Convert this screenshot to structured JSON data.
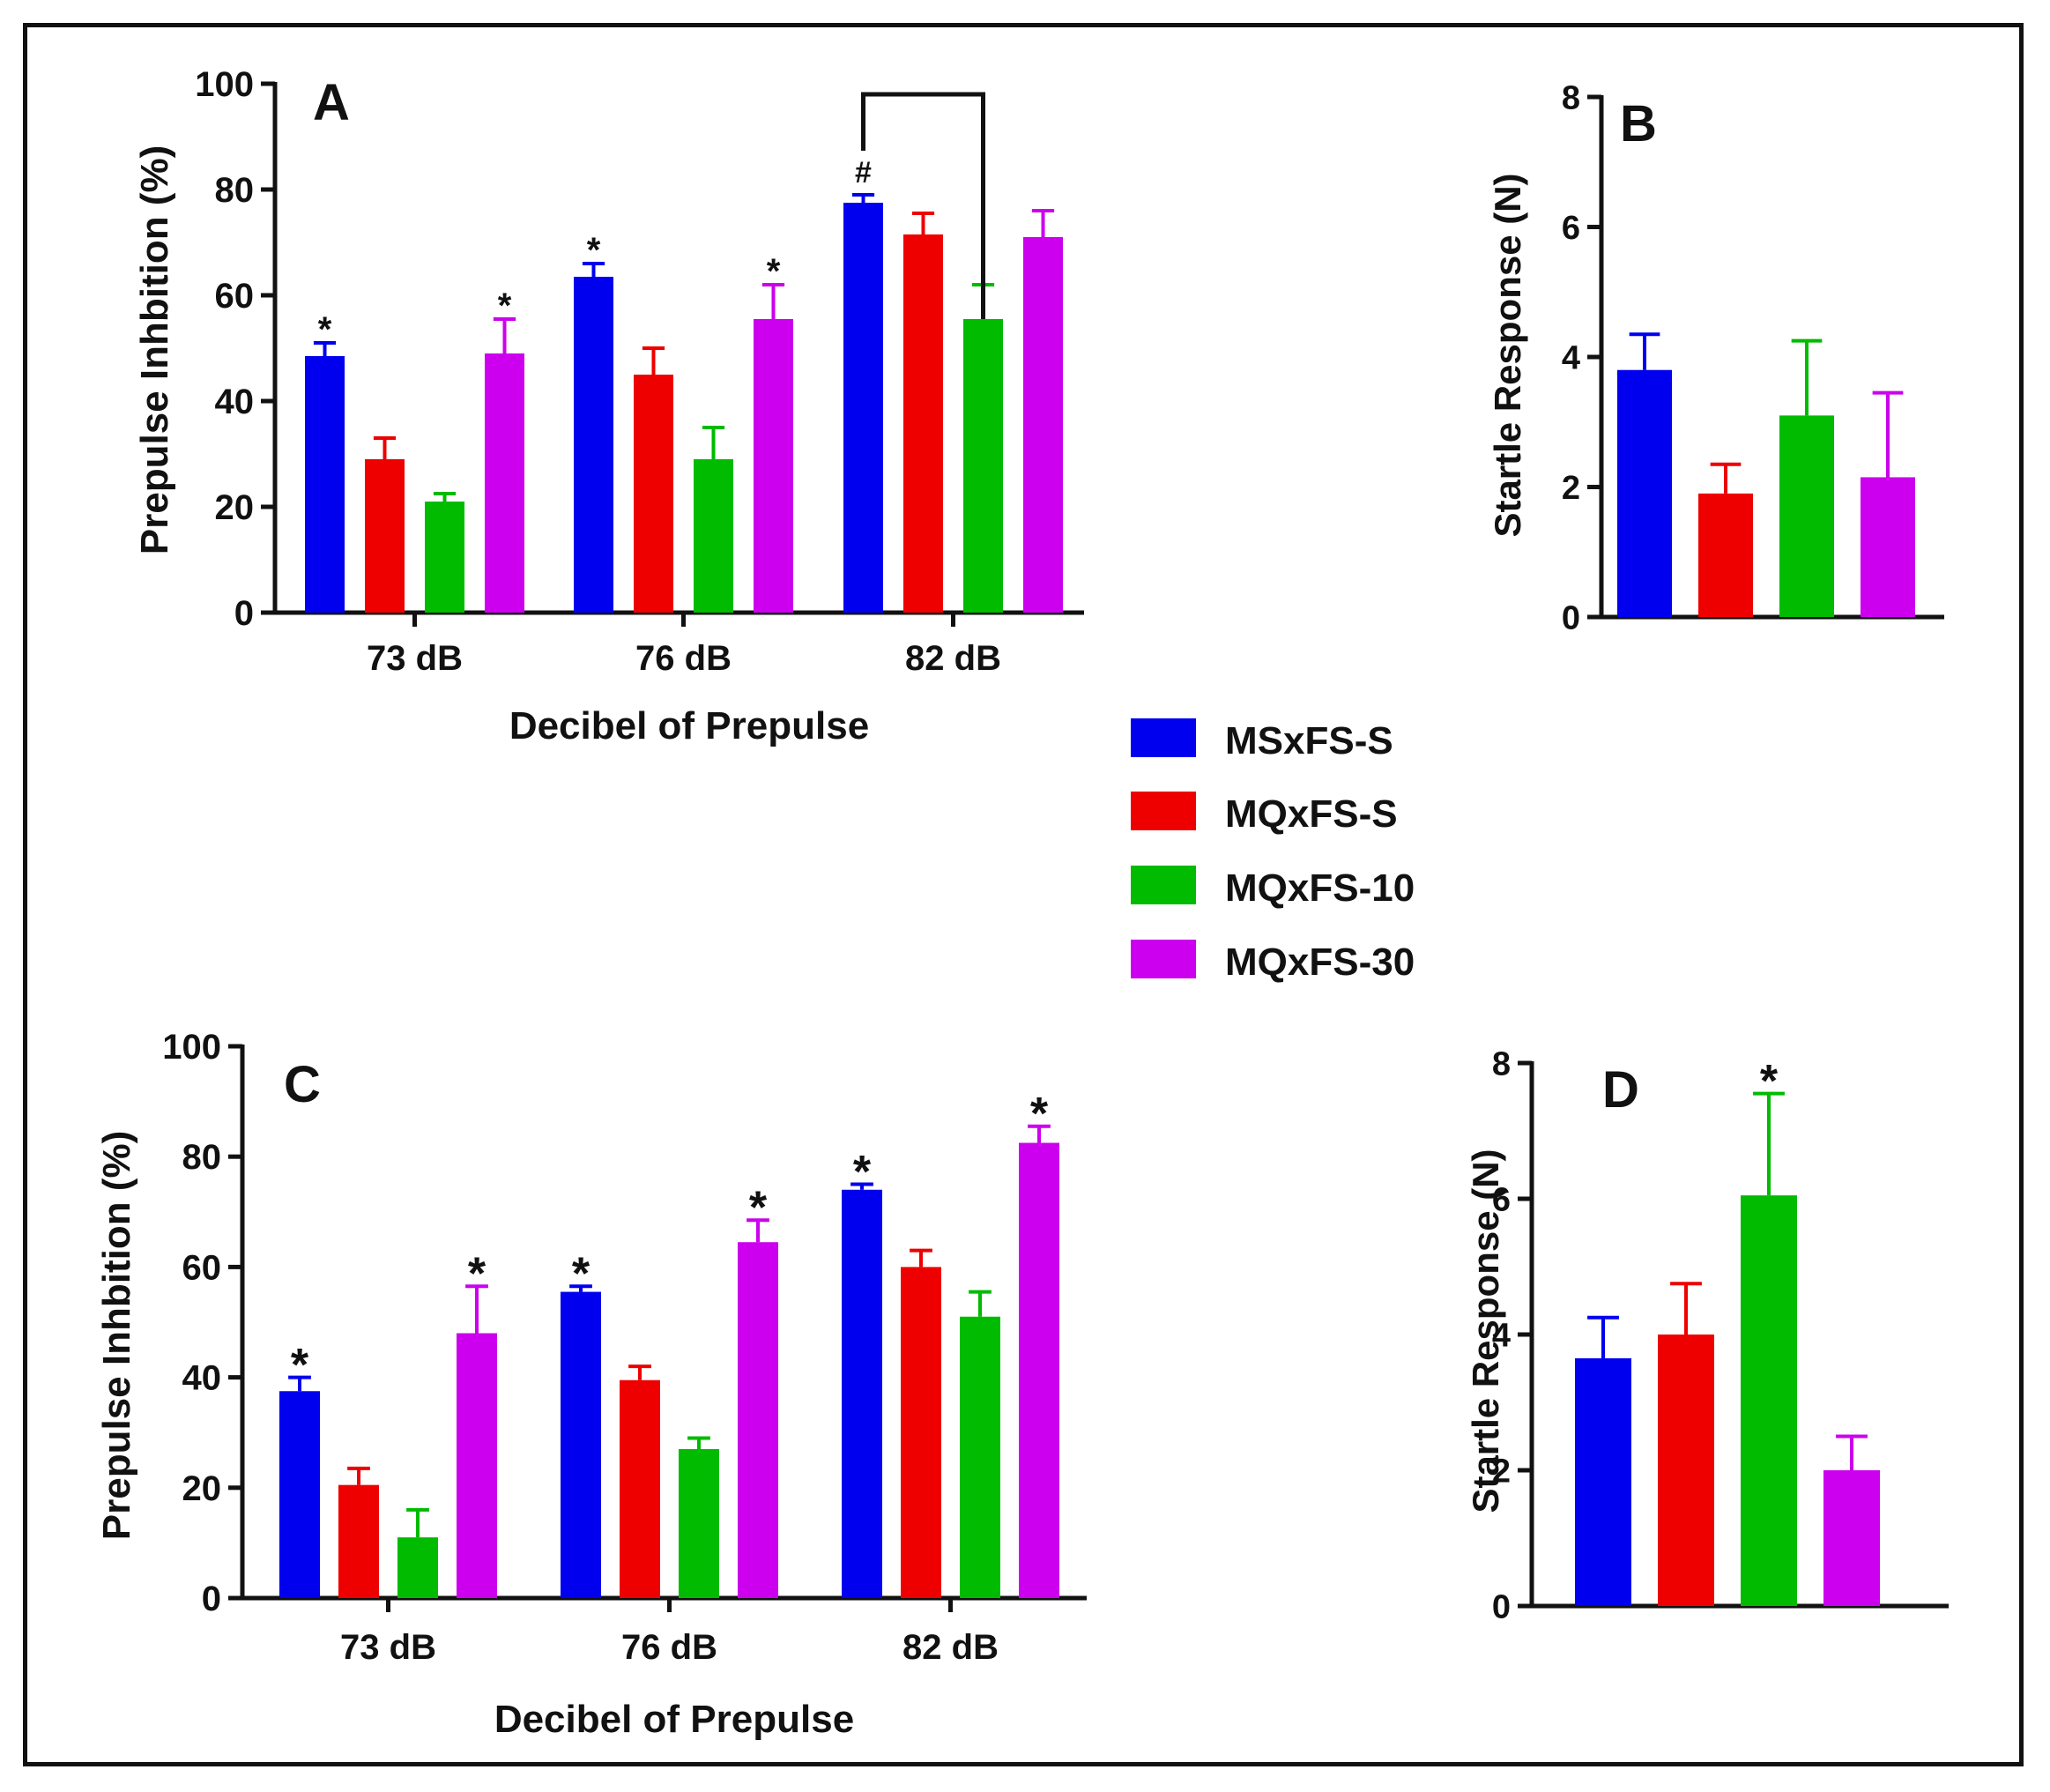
{
  "colors": [
    "#0000ee",
    "#ee0000",
    "#00bb00",
    "#cc00ee"
  ],
  "legend": {
    "entries": [
      "MSxFS-S",
      "MQxFS-S",
      "MQxFS-10",
      "MQxFS-30"
    ]
  },
  "chart_data": [
    {
      "panel": "A",
      "type": "bar",
      "ylabel": "Prepulse Inhbition (%)",
      "xlabel": "Decibel of Prepulse",
      "ylim": [
        0,
        100
      ],
      "yticks": [
        "0",
        "20",
        "40",
        "60",
        "80",
        "100"
      ],
      "categories": [
        "73 dB",
        "76 dB",
        "82 dB"
      ],
      "series": [
        {
          "name": "MSxFS-S",
          "values": [
            48.5,
            63.5,
            77.5
          ],
          "errors": [
            2.5,
            2.5,
            1.5
          ],
          "marks": [
            "*",
            "*",
            "#"
          ]
        },
        {
          "name": "MQxFS-S",
          "values": [
            29,
            45,
            71.5
          ],
          "errors": [
            4,
            5,
            4
          ],
          "marks": [
            "",
            "",
            ""
          ]
        },
        {
          "name": "MQxFS-10",
          "values": [
            21,
            29,
            55.5
          ],
          "errors": [
            1.5,
            6,
            6.5
          ],
          "marks": [
            "",
            "",
            ""
          ]
        },
        {
          "name": "MQxFS-30",
          "values": [
            49,
            55.5,
            71
          ],
          "errors": [
            6.5,
            6.5,
            5
          ],
          "marks": [
            "*",
            "*",
            ""
          ]
        }
      ],
      "bracket": {
        "category": "82 dB",
        "from_series": 0,
        "to_series": 2,
        "top_value": 98
      }
    },
    {
      "panel": "B",
      "type": "bar",
      "ylabel": "Startle Response (N)",
      "ylim": [
        0,
        8
      ],
      "yticks": [
        "0",
        "2",
        "4",
        "6",
        "8"
      ],
      "series": [
        {
          "name": "MSxFS-S",
          "values": [
            3.8
          ],
          "errors": [
            0.55
          ],
          "marks": [
            ""
          ]
        },
        {
          "name": "MQxFS-S",
          "values": [
            1.9
          ],
          "errors": [
            0.45
          ],
          "marks": [
            ""
          ]
        },
        {
          "name": "MQxFS-10",
          "values": [
            3.1
          ],
          "errors": [
            1.15
          ],
          "marks": [
            ""
          ]
        },
        {
          "name": "MQxFS-30",
          "values": [
            2.15
          ],
          "errors": [
            1.3
          ],
          "marks": [
            ""
          ]
        }
      ]
    },
    {
      "panel": "C",
      "type": "bar",
      "ylabel": "Prepulse Inhbition (%)",
      "xlabel": "Decibel of Prepulse",
      "ylim": [
        0,
        100
      ],
      "yticks": [
        "0",
        "20",
        "40",
        "60",
        "80",
        "100"
      ],
      "categories": [
        "73 dB",
        "76 dB",
        "82 dB"
      ],
      "series": [
        {
          "name": "MSxFS-S",
          "values": [
            37.5,
            55.5,
            74
          ],
          "errors": [
            2.5,
            1,
            1
          ],
          "marks": [
            "*",
            "*",
            "*"
          ]
        },
        {
          "name": "MQxFS-S",
          "values": [
            20.5,
            39.5,
            60
          ],
          "errors": [
            3,
            2.5,
            3
          ],
          "marks": [
            "",
            "",
            ""
          ]
        },
        {
          "name": "MQxFS-10",
          "values": [
            11,
            27,
            51
          ],
          "errors": [
            5,
            2,
            4.5
          ],
          "marks": [
            "",
            "",
            ""
          ]
        },
        {
          "name": "MQxFS-30",
          "values": [
            48,
            64.5,
            82.5
          ],
          "errors": [
            8.5,
            4,
            3
          ],
          "marks": [
            "*",
            "*",
            "*"
          ]
        }
      ]
    },
    {
      "panel": "D",
      "type": "bar",
      "ylabel": "Startle Response (N)",
      "ylim": [
        0,
        8
      ],
      "yticks": [
        "0",
        "2",
        "4",
        "6",
        "8"
      ],
      "series": [
        {
          "name": "MSxFS-S",
          "values": [
            3.65
          ],
          "errors": [
            0.6
          ],
          "marks": [
            ""
          ]
        },
        {
          "name": "MQxFS-S",
          "values": [
            4.0
          ],
          "errors": [
            0.75
          ],
          "marks": [
            ""
          ]
        },
        {
          "name": "MQxFS-10",
          "values": [
            6.05
          ],
          "errors": [
            1.5
          ],
          "marks": [
            "*"
          ]
        },
        {
          "name": "MQxFS-30",
          "values": [
            2.0
          ],
          "errors": [
            0.5
          ],
          "marks": [
            ""
          ]
        }
      ]
    }
  ]
}
